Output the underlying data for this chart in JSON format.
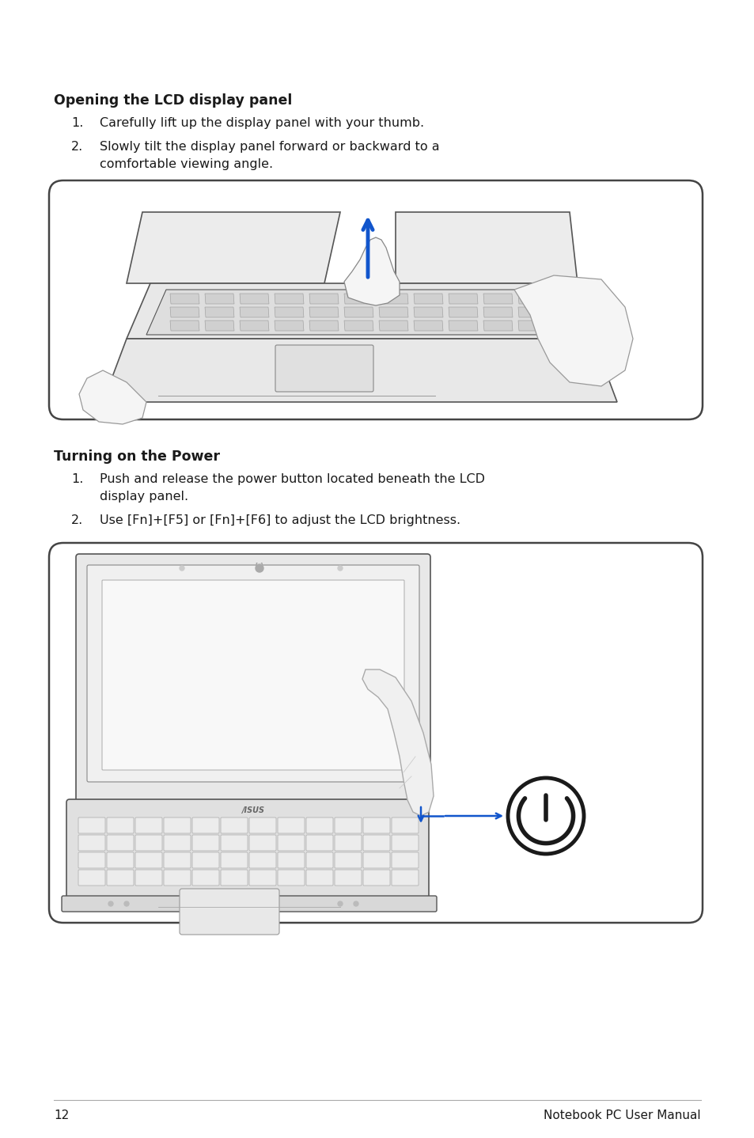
{
  "page_number": "12",
  "footer_right": "Notebook PC User Manual",
  "section1_title": "Opening the LCD display panel",
  "section1_item1": "Carefully lift up the display panel with your thumb.",
  "section1_item2_line1": "Slowly tilt the display panel forward or backward to a",
  "section1_item2_line2": "comfortable viewing angle.",
  "section2_title": "Turning on the Power",
  "section2_item1_line1": "Push and release the power button located beneath the LCD",
  "section2_item1_line2": "display panel.",
  "section2_item2": "Use [Fn]+[F5] or [Fn]+[F6] to adjust the LCD brightness.",
  "bg_color": "#ffffff",
  "text_color": "#1a1a1a",
  "box_border_color": "#444444",
  "line_color": "#555555",
  "title_fontsize": 12.5,
  "body_fontsize": 11.5,
  "footer_fontsize": 11
}
